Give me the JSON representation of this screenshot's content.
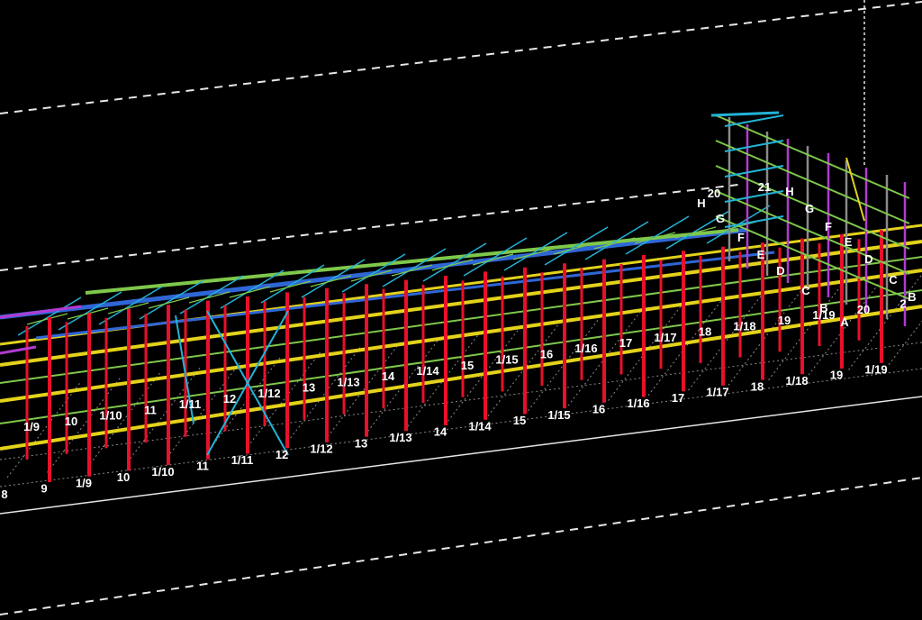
{
  "viewport": {
    "background": "#000000",
    "colors": {
      "column": "#e8102a",
      "beam_yellow": "#e3d21b",
      "beam_green": "#7ec84b",
      "beam_blue": "#2f66d6",
      "brace_cyan": "#22b3d6",
      "purple": "#b23bd1",
      "grid_white": "#e6e6e6",
      "grid_dim": "#8a8a8a"
    }
  },
  "grid_labels": {
    "front": [
      "8",
      "9",
      "1/9",
      "10",
      "1/10",
      "11",
      "1/11",
      "12",
      "1/12",
      "13",
      "1/13",
      "14",
      "1/14",
      "15",
      "1/15",
      "16",
      "1/16",
      "17",
      "1/17",
      "18",
      "1/18",
      "19",
      "1/19"
    ],
    "middle": [
      "1/9",
      "10",
      "1/10",
      "11",
      "1/11",
      "12",
      "1/12",
      "13",
      "1/13",
      "14",
      "1/14",
      "15",
      "1/15",
      "16",
      "1/16",
      "17",
      "1/17",
      "18",
      "1/18",
      "19",
      "1/19",
      "20",
      "2"
    ],
    "rows": [
      "H",
      "20",
      "21",
      "H",
      "G",
      "G",
      "F",
      "F",
      "E",
      "E",
      "D",
      "D",
      "C",
      "C",
      "B",
      "B",
      "A"
    ]
  }
}
